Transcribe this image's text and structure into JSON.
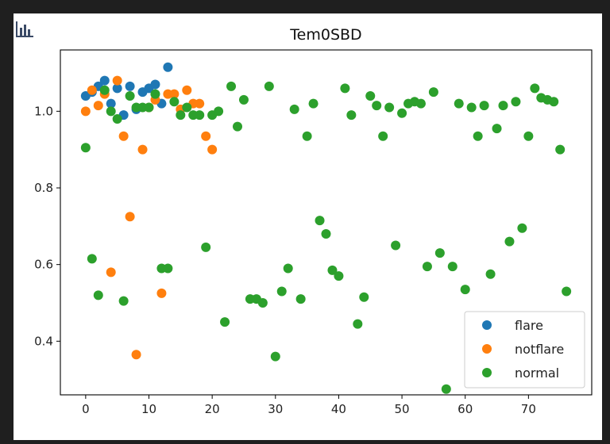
{
  "toolbar": {
    "chart_icon": "bar-chart-icon"
  },
  "chart_data": {
    "type": "scatter",
    "title": "Tem0SBD",
    "xlabel": "",
    "ylabel": "",
    "xlim": [
      -4,
      80
    ],
    "ylim": [
      0.26,
      1.16
    ],
    "xticks": [
      0,
      10,
      20,
      30,
      40,
      50,
      60,
      70
    ],
    "yticks": [
      0.4,
      0.6,
      0.8,
      1.0
    ],
    "ytick_labels": [
      "0.4",
      "0.6",
      "0.8",
      "1.0"
    ],
    "grid": false,
    "legend_position": "lower-right",
    "series": [
      {
        "name": "flare",
        "color": "#1f77b4",
        "points": [
          [
            0,
            1.04
          ],
          [
            1,
            1.05
          ],
          [
            2,
            1.065
          ],
          [
            3,
            1.08
          ],
          [
            4,
            1.02
          ],
          [
            5,
            1.06
          ],
          [
            6,
            0.99
          ],
          [
            7,
            1.065
          ],
          [
            8,
            1.005
          ],
          [
            9,
            1.05
          ],
          [
            10,
            1.06
          ],
          [
            11,
            1.07
          ],
          [
            12,
            1.02
          ],
          [
            13,
            1.115
          ]
        ]
      },
      {
        "name": "notflare",
        "color": "#ff7f0e",
        "points": [
          [
            0,
            1.0
          ],
          [
            1,
            1.055
          ],
          [
            2,
            1.015
          ],
          [
            3,
            1.045
          ],
          [
            4,
            0.58
          ],
          [
            5,
            1.08
          ],
          [
            6,
            0.935
          ],
          [
            7,
            0.725
          ],
          [
            8,
            0.365
          ],
          [
            9,
            0.9
          ],
          [
            10,
            1.01
          ],
          [
            11,
            1.03
          ],
          [
            12,
            0.525
          ],
          [
            13,
            1.045
          ],
          [
            14,
            1.045
          ],
          [
            15,
            1.005
          ],
          [
            16,
            1.055
          ],
          [
            17,
            1.02
          ],
          [
            18,
            1.02
          ],
          [
            19,
            0.935
          ],
          [
            20,
            0.9
          ]
        ]
      },
      {
        "name": "normal",
        "color": "#2ca02c",
        "points": [
          [
            0,
            0.905
          ],
          [
            1,
            0.615
          ],
          [
            2,
            0.52
          ],
          [
            3,
            1.055
          ],
          [
            4,
            1.0
          ],
          [
            5,
            0.98
          ],
          [
            6,
            0.505
          ],
          [
            7,
            1.04
          ],
          [
            8,
            1.01
          ],
          [
            9,
            1.01
          ],
          [
            10,
            1.01
          ],
          [
            11,
            1.045
          ],
          [
            12,
            0.59
          ],
          [
            13,
            0.59
          ],
          [
            14,
            1.025
          ],
          [
            15,
            0.99
          ],
          [
            16,
            1.01
          ],
          [
            17,
            0.99
          ],
          [
            18,
            0.99
          ],
          [
            19,
            0.645
          ],
          [
            20,
            0.99
          ],
          [
            21,
            1.0
          ],
          [
            22,
            0.45
          ],
          [
            23,
            1.065
          ],
          [
            24,
            0.96
          ],
          [
            25,
            1.03
          ],
          [
            26,
            0.51
          ],
          [
            27,
            0.51
          ],
          [
            28,
            0.5
          ],
          [
            29,
            1.065
          ],
          [
            30,
            0.36
          ],
          [
            31,
            0.53
          ],
          [
            32,
            0.59
          ],
          [
            33,
            1.005
          ],
          [
            34,
            0.51
          ],
          [
            35,
            0.935
          ],
          [
            36,
            1.02
          ],
          [
            37,
            0.715
          ],
          [
            38,
            0.68
          ],
          [
            39,
            0.585
          ],
          [
            40,
            0.57
          ],
          [
            41,
            1.06
          ],
          [
            42,
            0.99
          ],
          [
            43,
            0.445
          ],
          [
            44,
            0.515
          ],
          [
            45,
            1.04
          ],
          [
            46,
            1.015
          ],
          [
            47,
            0.935
          ],
          [
            48,
            1.01
          ],
          [
            49,
            0.65
          ],
          [
            50,
            0.995
          ],
          [
            51,
            1.02
          ],
          [
            52,
            1.025
          ],
          [
            53,
            1.02
          ],
          [
            54,
            0.595
          ],
          [
            55,
            1.05
          ],
          [
            56,
            0.63
          ],
          [
            57,
            0.275
          ],
          [
            58,
            0.595
          ],
          [
            59,
            1.02
          ],
          [
            60,
            0.535
          ],
          [
            61,
            1.01
          ],
          [
            62,
            0.935
          ],
          [
            63,
            1.015
          ],
          [
            64,
            0.575
          ],
          [
            65,
            0.955
          ],
          [
            66,
            1.015
          ],
          [
            67,
            0.66
          ],
          [
            68,
            1.025
          ],
          [
            69,
            0.695
          ],
          [
            70,
            0.935
          ],
          [
            71,
            1.06
          ],
          [
            72,
            1.035
          ],
          [
            73,
            1.03
          ],
          [
            74,
            1.025
          ],
          [
            75,
            0.9
          ],
          [
            76,
            0.53
          ]
        ]
      }
    ]
  }
}
